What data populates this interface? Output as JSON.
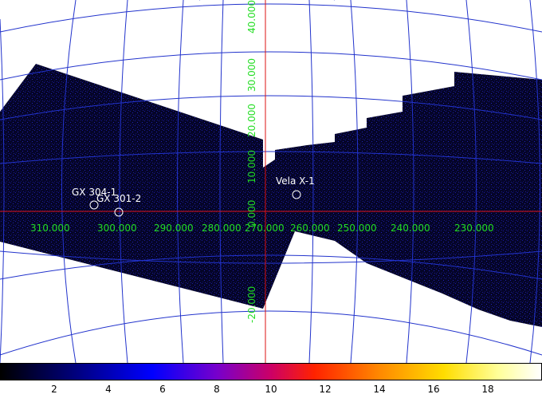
{
  "map": {
    "longitude_labels": [
      "310.000",
      "300.000",
      "290.000",
      "280.000",
      "270.000",
      "260.000",
      "250.000",
      "240.000",
      "230.000"
    ],
    "latitude_labels": [
      "40.000",
      "30.000",
      "20.000",
      "10.000",
      "0.000",
      "-20.000"
    ],
    "sources": [
      {
        "name": "GX 304-1"
      },
      {
        "name": "GX 301-2"
      },
      {
        "name": "Vela X-1"
      }
    ],
    "colors": {
      "sky": "#050528",
      "noise": "#1a1aa0",
      "grid": "#2233cc",
      "axis": "#dd1111",
      "labels": "#22dd22",
      "background": "#ffffff"
    }
  },
  "colorbar": {
    "tick_labels": [
      "2",
      "4",
      "6",
      "8",
      "10",
      "12",
      "14",
      "16",
      "18"
    ],
    "range": [
      0,
      20
    ]
  }
}
